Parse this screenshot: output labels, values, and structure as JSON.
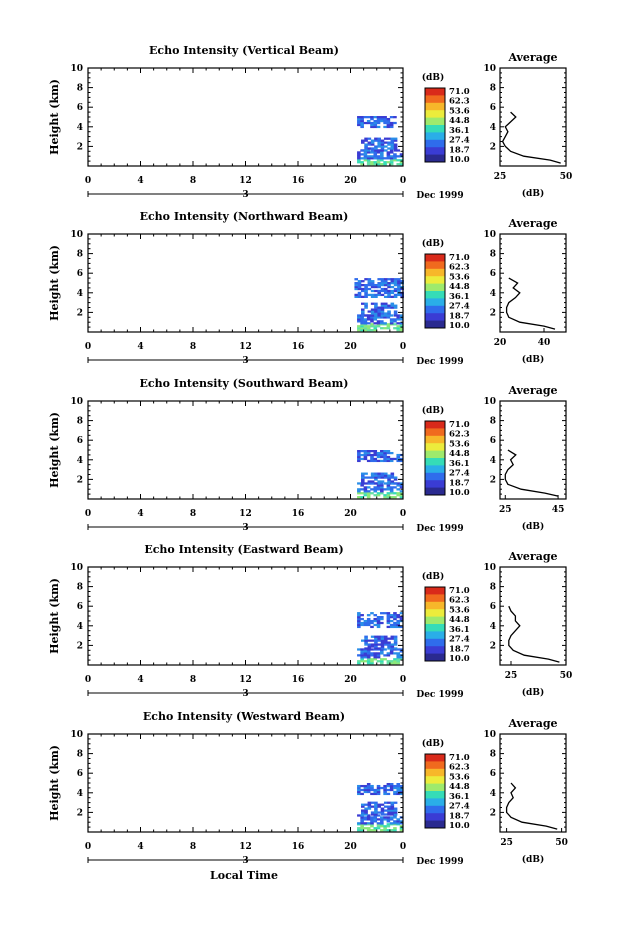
{
  "figure": {
    "xlabel": "Local Time",
    "date_label": "Dec 1999",
    "ylabel": "Height (km)",
    "avg_title": "Average",
    "unit": "(dB)",
    "colorbar_ticks": [
      "71.0",
      "62.3",
      "53.6",
      "44.8",
      "36.1",
      "27.4",
      "18.7",
      "10.0"
    ],
    "colorbar_colors": [
      "#d92a1a",
      "#f06a1e",
      "#f7b72a",
      "#ecec3c",
      "#9eea6c",
      "#35dcb7",
      "#2aaee8",
      "#2f6cec",
      "#3a3cd4",
      "#2a2a90"
    ],
    "time_ticks": [
      "0",
      "4",
      "8",
      "12",
      "16",
      "20",
      "0"
    ],
    "day_label": "3",
    "height_ticks": [
      "10",
      "8",
      "6",
      "4",
      "2"
    ]
  },
  "chart_data": [
    {
      "type": "heatmap",
      "title": "Echo Intensity (Vertical Beam)",
      "xlabel": "",
      "ylabel": "Height (km)",
      "xlim": [
        0,
        24
      ],
      "ylim": [
        0,
        10
      ],
      "echo_layers": [
        {
          "t0": 20.5,
          "t1": 24,
          "h0": 0.1,
          "h1": 0.7,
          "level": "18.7-27.4"
        },
        {
          "t0": 20.5,
          "t1": 23.8,
          "h0": 0.7,
          "h1": 1.5,
          "level": "10.0-18.7"
        },
        {
          "t0": 20.8,
          "t1": 23.5,
          "h0": 1.5,
          "h1": 2.8,
          "level": "10.0-18.7"
        },
        {
          "t0": 20.5,
          "t1": 23.5,
          "h0": 3.9,
          "h1": 5.0,
          "level": "10.0-18.7"
        }
      ],
      "average": {
        "xlim": [
          25,
          50
        ],
        "xticks": [
          "25",
          "50"
        ],
        "xlabel": "(dB)",
        "heights": [
          0.3,
          0.6,
          1.0,
          1.5,
          2.0,
          2.5,
          3.0,
          3.5,
          4.0,
          4.5,
          5.0,
          5.5
        ],
        "values": [
          48,
          44,
          34,
          29,
          27,
          26,
          27,
          28,
          27,
          29,
          31,
          29
        ]
      }
    },
    {
      "type": "heatmap",
      "title": "Echo Intensity (Northward Beam)",
      "xlabel": "",
      "ylabel": "Height (km)",
      "xlim": [
        0,
        24
      ],
      "ylim": [
        0,
        10
      ],
      "echo_layers": [
        {
          "t0": 20.5,
          "t1": 24,
          "h0": 0.1,
          "h1": 0.8,
          "level": "18.7-27.4"
        },
        {
          "t0": 20.5,
          "t1": 24,
          "h0": 0.8,
          "h1": 1.6,
          "level": "10.0-18.7"
        },
        {
          "t0": 20.8,
          "t1": 23.5,
          "h0": 1.6,
          "h1": 3.0,
          "level": "10.0-18.7"
        },
        {
          "t0": 20.3,
          "t1": 24,
          "h0": 3.5,
          "h1": 5.5,
          "level": "10.0-18.7"
        }
      ],
      "average": {
        "xlim": [
          20,
          50
        ],
        "xticks": [
          "20",
          "40"
        ],
        "xlabel": "(dB)",
        "heights": [
          0.3,
          0.6,
          1.0,
          1.5,
          2.0,
          2.5,
          3.0,
          3.5,
          4.0,
          4.5,
          5.0,
          5.5
        ],
        "values": [
          45,
          40,
          29,
          24,
          23,
          23,
          24,
          27,
          29,
          26,
          28,
          24
        ]
      }
    },
    {
      "type": "heatmap",
      "title": "Echo Intensity (Southward Beam)",
      "xlabel": "",
      "ylabel": "Height (km)",
      "xlim": [
        0,
        24
      ],
      "ylim": [
        0,
        10
      ],
      "echo_layers": [
        {
          "t0": 20.5,
          "t1": 24,
          "h0": 0.1,
          "h1": 0.7,
          "level": "18.7-27.4"
        },
        {
          "t0": 20.5,
          "t1": 24,
          "h0": 0.7,
          "h1": 1.5,
          "level": "10.0-18.7"
        },
        {
          "t0": 20.8,
          "t1": 23.5,
          "h0": 1.5,
          "h1": 2.6,
          "level": "10.0-18.7"
        },
        {
          "t0": 20.5,
          "t1": 24,
          "h0": 3.8,
          "h1": 5.0,
          "level": "10.0-18.7"
        }
      ],
      "average": {
        "xlim": [
          23,
          48
        ],
        "xticks": [
          "25",
          "45"
        ],
        "xlabel": "(dB)",
        "heights": [
          0.3,
          0.6,
          1.0,
          1.5,
          2.0,
          2.5,
          3.0,
          3.5,
          4.0,
          4.5,
          5.0
        ],
        "values": [
          45,
          40,
          31,
          26,
          25,
          25,
          26,
          28,
          27,
          29,
          26
        ]
      }
    },
    {
      "type": "heatmap",
      "title": "Echo Intensity (Eastward Beam)",
      "xlabel": "",
      "ylabel": "Height (km)",
      "xlim": [
        0,
        24
      ],
      "ylim": [
        0,
        10
      ],
      "echo_layers": [
        {
          "t0": 20.5,
          "t1": 24,
          "h0": 0.1,
          "h1": 0.7,
          "level": "18.7-27.4"
        },
        {
          "t0": 20.5,
          "t1": 24,
          "h0": 0.7,
          "h1": 1.6,
          "level": "10.0-18.7"
        },
        {
          "t0": 20.8,
          "t1": 23.5,
          "h0": 1.6,
          "h1": 2.9,
          "level": "10.0-18.7"
        },
        {
          "t0": 20.5,
          "t1": 24,
          "h0": 3.8,
          "h1": 5.3,
          "level": "10.0-18.7"
        }
      ],
      "average": {
        "xlim": [
          20,
          50
        ],
        "xticks": [
          "25",
          "50"
        ],
        "xlabel": "(dB)",
        "heights": [
          0.3,
          0.6,
          1.0,
          1.5,
          2.0,
          2.5,
          3.0,
          3.5,
          4.0,
          4.5,
          5.0,
          5.5,
          6.0
        ],
        "values": [
          47,
          42,
          31,
          26,
          24,
          24,
          25,
          27,
          29,
          27,
          27,
          25,
          24
        ]
      }
    },
    {
      "type": "heatmap",
      "title": "Echo Intensity (Westward Beam)",
      "xlabel": "Local Time",
      "ylabel": "Height (km)",
      "xlim": [
        0,
        24
      ],
      "ylim": [
        0,
        10
      ],
      "echo_layers": [
        {
          "t0": 20.5,
          "t1": 24,
          "h0": 0.1,
          "h1": 0.8,
          "level": "18.7-27.4"
        },
        {
          "t0": 20.5,
          "t1": 24,
          "h0": 0.8,
          "h1": 1.7,
          "level": "10.0-18.7"
        },
        {
          "t0": 20.8,
          "t1": 23.5,
          "h0": 1.7,
          "h1": 3.0,
          "level": "10.0-18.7"
        },
        {
          "t0": 20.5,
          "t1": 24,
          "h0": 3.8,
          "h1": 5.0,
          "level": "10.0-18.7"
        }
      ],
      "average": {
        "xlim": [
          22,
          52
        ],
        "xticks": [
          "25",
          "50"
        ],
        "xlabel": "(dB)",
        "heights": [
          0.3,
          0.6,
          1.0,
          1.5,
          2.0,
          2.5,
          3.0,
          3.5,
          4.0,
          4.5,
          5.0
        ],
        "values": [
          48,
          43,
          32,
          27,
          25,
          25,
          26,
          28,
          27,
          29,
          27
        ]
      }
    }
  ]
}
